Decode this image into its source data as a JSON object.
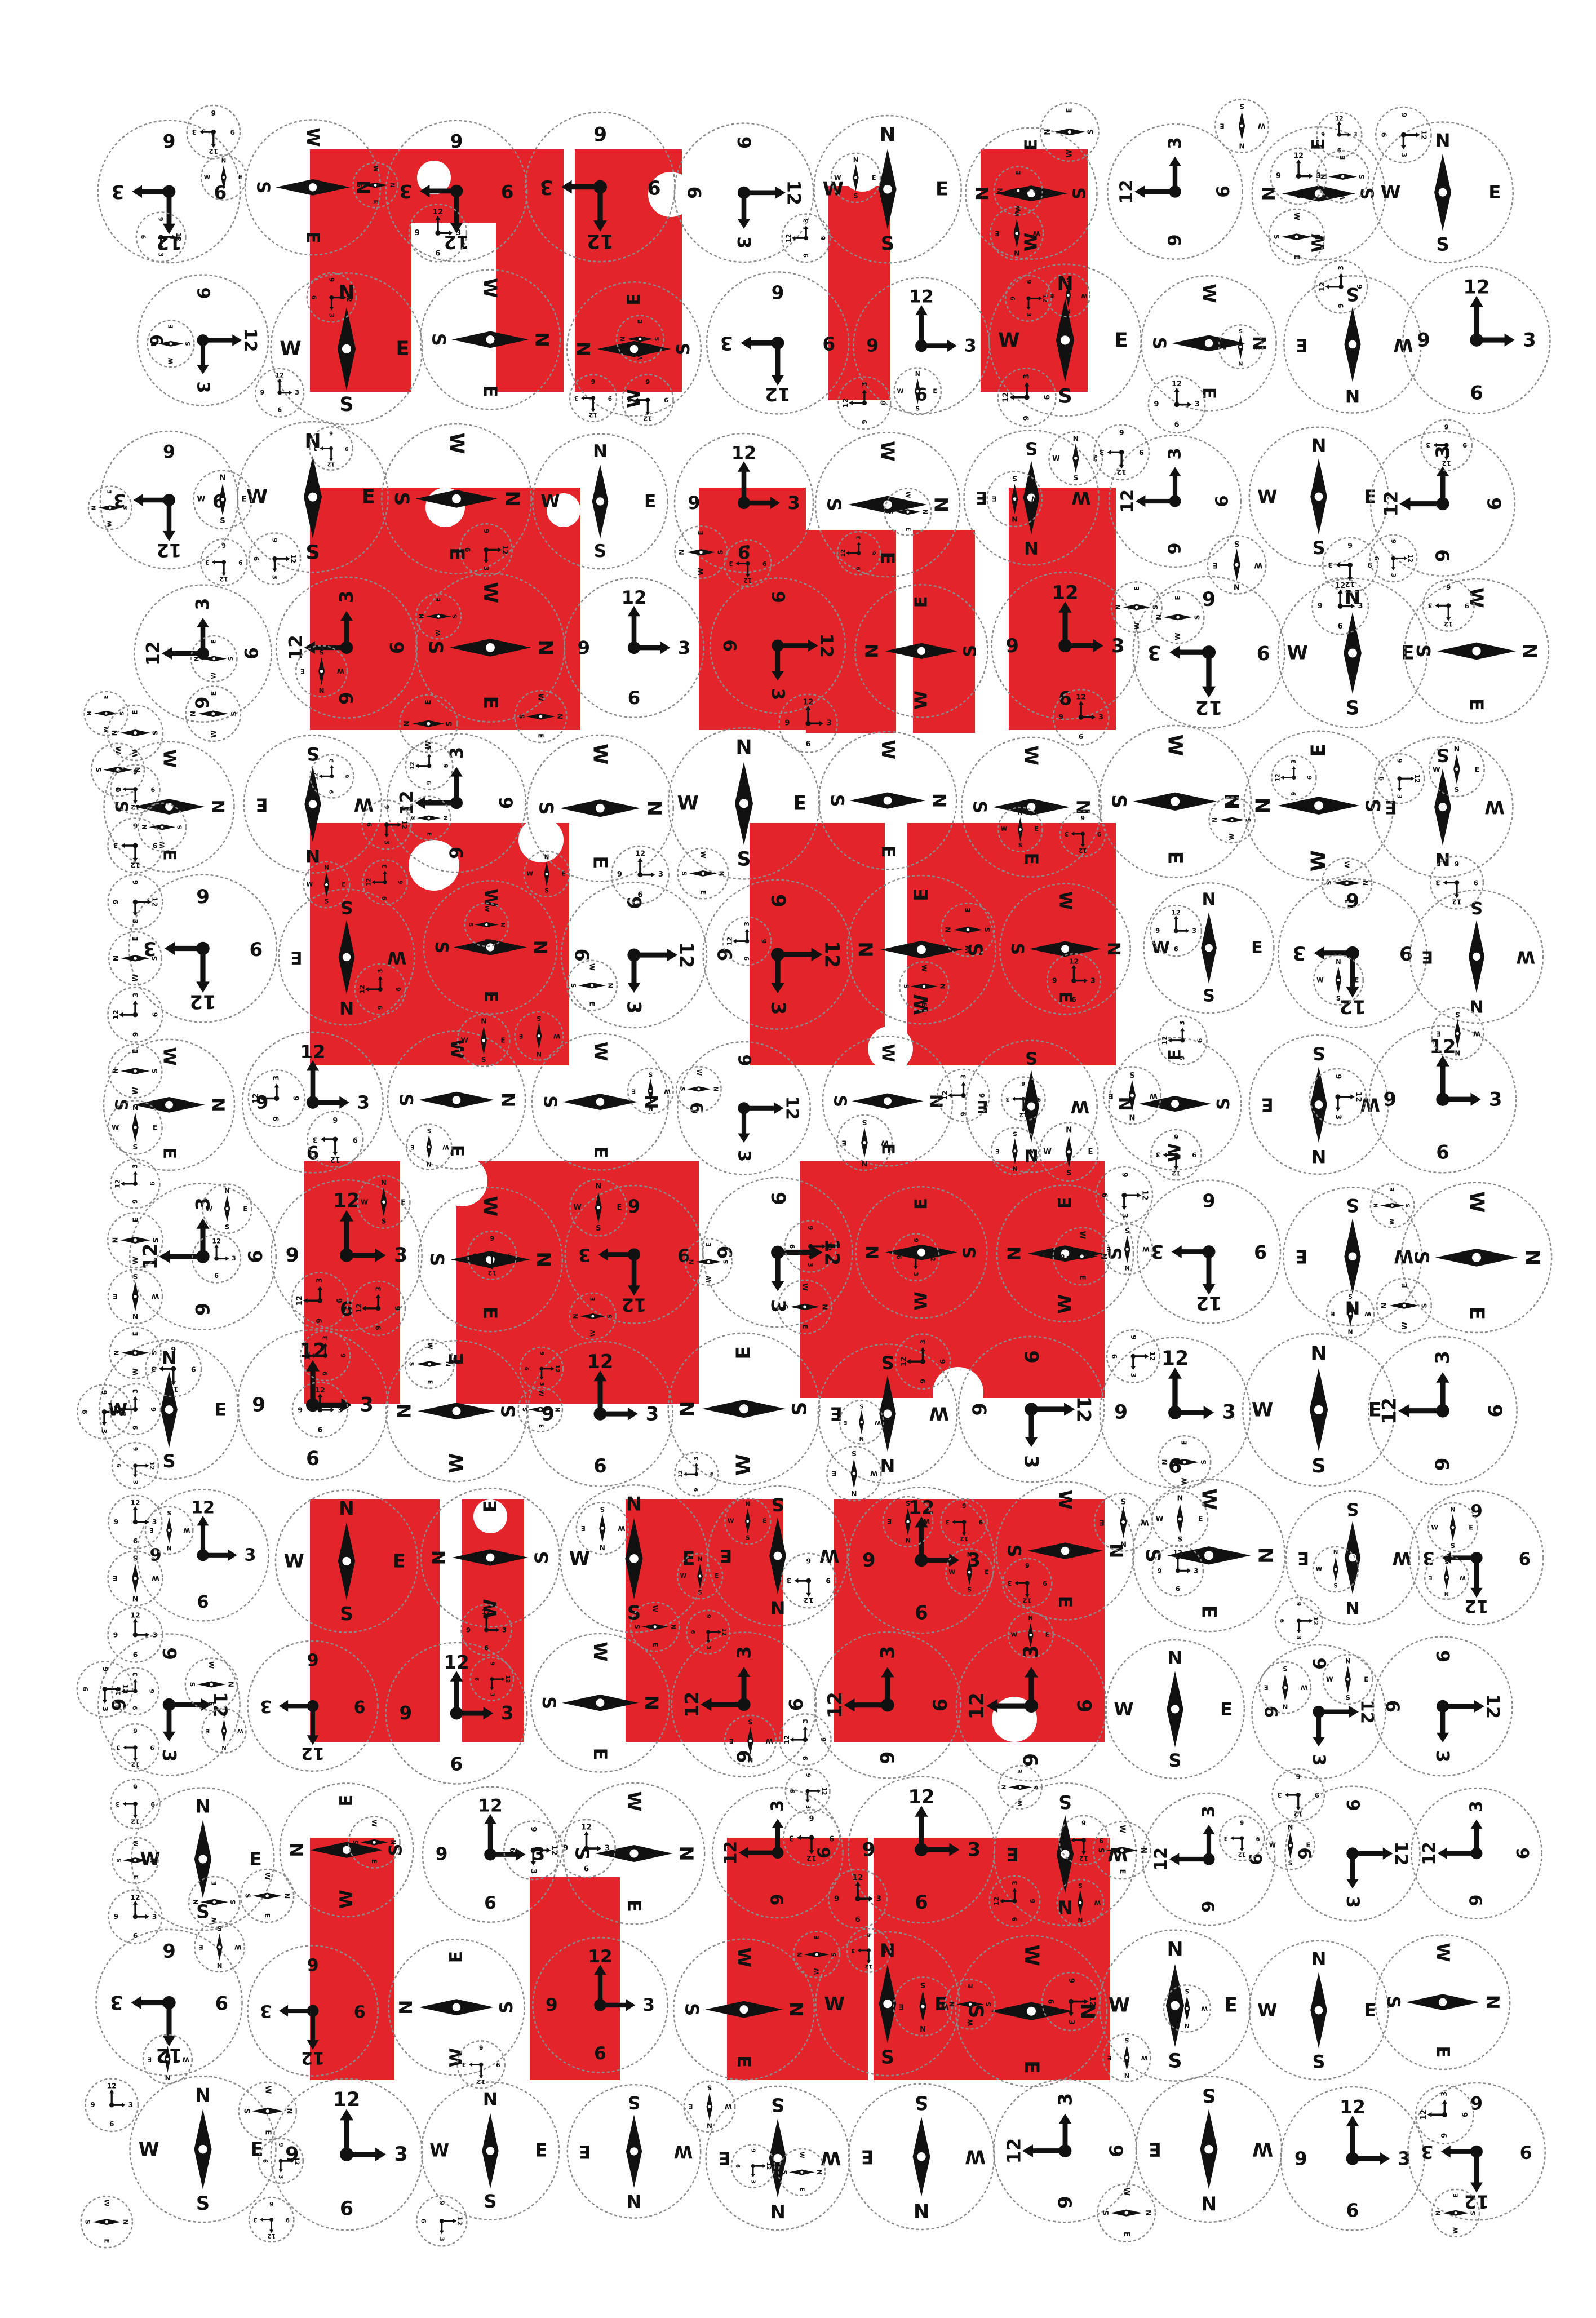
{
  "poster": {
    "accent_color": "#e3242b",
    "ink_color": "#111111",
    "ring_color": "#8a8a8a",
    "clock_labels": [
      "12",
      "3",
      "6",
      "9"
    ],
    "compass_labels": [
      "N",
      "E",
      "S",
      "W"
    ],
    "dial_types": [
      "clock-face-icon",
      "compass-rose-icon"
    ]
  }
}
